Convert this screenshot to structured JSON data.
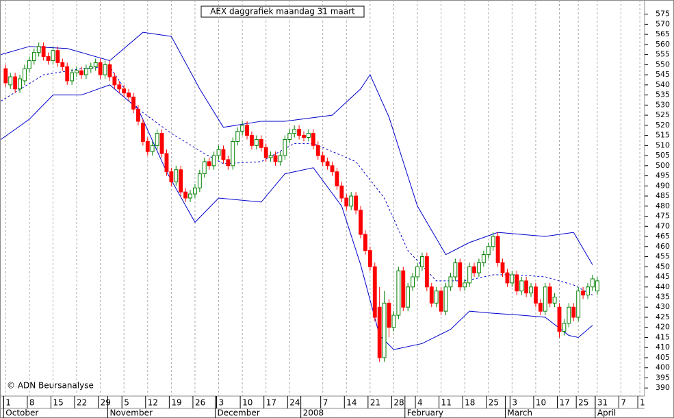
{
  "chart_data": {
    "type": "candlestick",
    "title": "AEX daggrafiek maandag 31 maart",
    "copyright": "© ADN Beursanalyse",
    "ylim": [
      386,
      582
    ],
    "xlim": [
      -1.2,
      135
    ],
    "yticks": [
      390,
      395,
      400,
      405,
      410,
      415,
      420,
      425,
      430,
      435,
      440,
      445,
      450,
      455,
      460,
      465,
      470,
      475,
      480,
      485,
      490,
      495,
      500,
      505,
      510,
      515,
      520,
      525,
      530,
      535,
      540,
      545,
      550,
      555,
      560,
      565,
      570,
      575
    ],
    "xticks": [
      {
        "value": 0,
        "label": "1"
      },
      {
        "value": 5,
        "label": "8"
      },
      {
        "value": 10,
        "label": "15"
      },
      {
        "value": 15,
        "label": "22"
      },
      {
        "value": 20,
        "label": "29"
      },
      {
        "value": 25,
        "label": "5"
      },
      {
        "value": 30,
        "label": "12"
      },
      {
        "value": 35,
        "label": "19"
      },
      {
        "value": 40,
        "label": "26"
      },
      {
        "value": 45,
        "label": "3"
      },
      {
        "value": 50,
        "label": "10"
      },
      {
        "value": 55,
        "label": "17"
      },
      {
        "value": 60,
        "label": "24"
      },
      {
        "value": 67,
        "label": "7"
      },
      {
        "value": 72,
        "label": "14"
      },
      {
        "value": 77,
        "label": "21"
      },
      {
        "value": 82,
        "label": "28"
      },
      {
        "value": 87,
        "label": "4"
      },
      {
        "value": 92,
        "label": "11"
      },
      {
        "value": 97,
        "label": "18"
      },
      {
        "value": 102,
        "label": "25"
      },
      {
        "value": 107,
        "label": "3"
      },
      {
        "value": 112,
        "label": "10"
      },
      {
        "value": 117,
        "label": "17"
      },
      {
        "value": 121,
        "label": "25"
      },
      {
        "value": 125,
        "label": "31"
      },
      {
        "value": 130,
        "label": "7"
      },
      {
        "value": 134,
        "label": "1"
      }
    ],
    "months": [
      {
        "value": 0,
        "label": "October"
      },
      {
        "value": 22,
        "label": "November"
      },
      {
        "value": 44.7,
        "label": "December"
      },
      {
        "value": 62.8,
        "label": "2008"
      },
      {
        "value": 84.8,
        "label": "February"
      },
      {
        "value": 106,
        "label": "March"
      },
      {
        "value": 125,
        "label": "April"
      }
    ],
    "grid": true,
    "up_color": "#008000",
    "down_color": "#ff0000",
    "band_color": "#0000cc",
    "open": [
      548,
      540,
      544,
      538,
      542,
      548,
      552,
      556,
      559,
      554,
      552,
      557,
      551,
      549,
      542,
      546,
      547,
      545,
      548,
      549,
      551,
      545,
      550,
      544,
      540,
      538,
      536,
      534,
      528,
      521,
      512,
      507,
      510,
      516,
      506,
      497,
      492,
      498,
      487,
      484,
      486,
      489,
      496,
      502,
      500,
      505,
      508,
      503,
      500,
      512,
      517,
      520,
      515,
      510,
      513,
      509,
      504,
      505,
      502,
      505,
      513,
      516,
      518,
      515,
      514,
      516,
      510,
      505,
      502,
      500,
      497,
      490,
      484,
      480,
      485,
      478,
      466,
      458,
      450,
      430,
      405,
      432,
      420,
      426,
      448,
      430,
      440,
      445,
      450,
      455,
      440,
      432,
      438,
      428,
      440,
      445,
      452,
      440,
      442,
      450,
      447,
      452,
      456,
      460,
      465,
      452,
      447,
      442,
      446,
      438,
      443,
      437,
      440,
      432,
      428,
      440,
      432,
      430,
      418,
      422,
      430,
      425,
      438,
      436,
      440,
      438
    ],
    "high": [
      550,
      546,
      546,
      545,
      550,
      554,
      558,
      561,
      561,
      556,
      559,
      559,
      553,
      551,
      548,
      549,
      549,
      550,
      551,
      553,
      553,
      552,
      552,
      546,
      542,
      540,
      538,
      536,
      530,
      523,
      514,
      512,
      518,
      518,
      508,
      499,
      500,
      500,
      489,
      488,
      491,
      498,
      504,
      504,
      507,
      510,
      510,
      505,
      514,
      519,
      522,
      522,
      517,
      515,
      515,
      511,
      507,
      507,
      507,
      515,
      518,
      520,
      520,
      517,
      518,
      518,
      512,
      507,
      504,
      502,
      499,
      492,
      486,
      487,
      487,
      480,
      468,
      460,
      452,
      440,
      438,
      434,
      428,
      450,
      450,
      442,
      447,
      452,
      457,
      457,
      442,
      440,
      440,
      442,
      447,
      454,
      454,
      444,
      452,
      452,
      454,
      458,
      462,
      467,
      467,
      454,
      449,
      448,
      448,
      445,
      445,
      442,
      442,
      434,
      442,
      442,
      437,
      432,
      424,
      432,
      432,
      440,
      440,
      442,
      446,
      445
    ],
    "low": [
      539,
      538,
      536,
      536,
      540,
      546,
      550,
      554,
      552,
      550,
      550,
      549,
      547,
      540,
      540,
      544,
      543,
      543,
      546,
      547,
      543,
      543,
      542,
      538,
      536,
      534,
      532,
      526,
      520,
      510,
      505,
      505,
      508,
      504,
      495,
      490,
      490,
      485,
      482,
      482,
      484,
      487,
      494,
      498,
      498,
      503,
      501,
      498,
      498,
      510,
      515,
      513,
      508,
      508,
      507,
      502,
      502,
      500,
      500,
      503,
      511,
      514,
      513,
      512,
      512,
      508,
      503,
      500,
      498,
      495,
      488,
      482,
      478,
      478,
      476,
      464,
      456,
      448,
      423,
      403,
      403,
      415,
      418,
      424,
      428,
      428,
      438,
      443,
      448,
      438,
      430,
      430,
      426,
      426,
      438,
      443,
      438,
      438,
      440,
      445,
      445,
      450,
      454,
      458,
      450,
      445,
      440,
      440,
      436,
      436,
      435,
      435,
      430,
      426,
      426,
      430,
      430,
      415,
      416,
      420,
      423,
      423,
      434,
      434,
      438,
      436
    ],
    "close": [
      541,
      544,
      538,
      543,
      548,
      552,
      556,
      559,
      554,
      552,
      557,
      551,
      549,
      542,
      546,
      547,
      545,
      548,
      549,
      551,
      545,
      550,
      544,
      540,
      538,
      536,
      534,
      528,
      522,
      512,
      507,
      510,
      516,
      506,
      497,
      492,
      498,
      487,
      484,
      486,
      489,
      496,
      502,
      500,
      505,
      508,
      503,
      500,
      512,
      517,
      520,
      515,
      510,
      513,
      509,
      504,
      505,
      502,
      505,
      513,
      516,
      518,
      515,
      514,
      516,
      510,
      505,
      502,
      500,
      497,
      490,
      484,
      480,
      485,
      478,
      466,
      458,
      450,
      425,
      405,
      432,
      420,
      426,
      448,
      430,
      440,
      445,
      450,
      455,
      440,
      432,
      438,
      428,
      440,
      445,
      452,
      440,
      442,
      450,
      447,
      452,
      456,
      460,
      465,
      452,
      447,
      442,
      446,
      438,
      443,
      437,
      440,
      432,
      428,
      440,
      432,
      435,
      418,
      422,
      430,
      425,
      438,
      436,
      440,
      444,
      443
    ],
    "bands": [
      {
        "style": "solid",
        "x": [
          -1,
          5,
          13,
          22,
          29,
          35,
          41,
          46,
          54,
          59,
          69,
          75,
          77,
          81,
          87,
          93,
          98,
          104,
          114,
          120,
          124
        ],
        "values": [
          555,
          559,
          558,
          552,
          566,
          564,
          538,
          519,
          522,
          522,
          525,
          538,
          545,
          524,
          480,
          456,
          462,
          467,
          465,
          467,
          451
        ]
      },
      {
        "style": "dashed",
        "x": [
          -1,
          8,
          16,
          22,
          28,
          35,
          42,
          46,
          54,
          61,
          65,
          74,
          80,
          85,
          91,
          97,
          103,
          108,
          114,
          120,
          124
        ],
        "values": [
          532,
          545,
          548,
          549,
          528,
          516,
          506,
          501,
          502,
          511,
          511,
          502,
          484,
          458,
          443,
          443,
          446,
          446,
          445,
          441,
          436
        ]
      },
      {
        "style": "solid",
        "x": [
          -1,
          5,
          10,
          16,
          22,
          28,
          34,
          40,
          45,
          54,
          59,
          65,
          71,
          75,
          79,
          82,
          88,
          94,
          98,
          103,
          109,
          114,
          119,
          121,
          124
        ],
        "values": [
          513,
          523,
          535,
          535,
          540,
          528,
          497,
          472,
          484,
          482,
          496,
          499,
          480,
          451,
          416,
          409,
          412,
          419,
          428,
          427,
          426,
          425,
          416,
          415,
          421
        ]
      }
    ]
  }
}
